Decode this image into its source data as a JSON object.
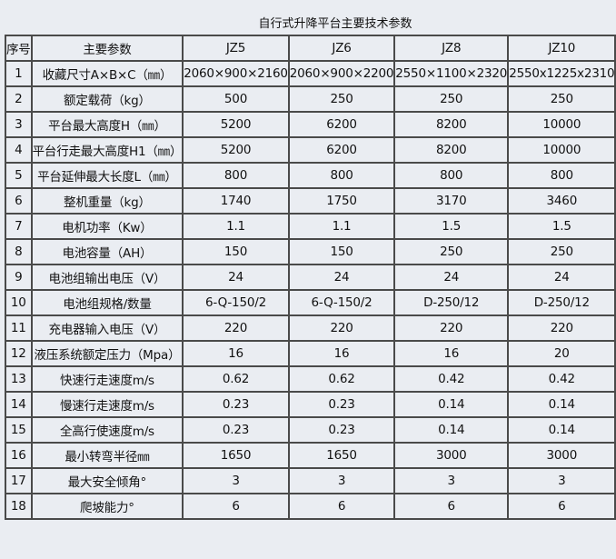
{
  "title": "自行式升降平台主要技术参数",
  "header": [
    "序号",
    "主要参数",
    "JZ5",
    "JZ6",
    "JZ8",
    "JZ10"
  ],
  "rows": [
    [
      "1",
      "收藏尺寸A×B×C（㎜）",
      "2060×900×2160",
      "2060×900×2200",
      "2550×1100×2320",
      "2550x1225x2310"
    ],
    [
      "2",
      "额定载荷（kg）",
      "500",
      "250",
      "250",
      "250"
    ],
    [
      "3",
      "平台最大高度H（㎜）",
      "5200",
      "6200",
      "8200",
      "10000"
    ],
    [
      "4",
      "平台行走最大高度H1（㎜）",
      "5200",
      "6200",
      "8200",
      "10000"
    ],
    [
      "5",
      "平台延伸最大长度L（㎜）",
      "800",
      "800",
      "800",
      "800"
    ],
    [
      "6",
      "整机重量（kg）",
      "1740",
      "1750",
      "3170",
      "3460"
    ],
    [
      "7",
      "电机功率（Kw）",
      "1.1",
      "1.1",
      "1.5",
      "1.5"
    ],
    [
      "8",
      "电池容量（AH）",
      "150",
      "150",
      "250",
      "250"
    ],
    [
      "9",
      "电池组输出电压（V）",
      "24",
      "24",
      "24",
      "24"
    ],
    [
      "10",
      "电池组规格/数量",
      "6-Q-150/2",
      "6-Q-150/2",
      "D-250/12",
      "D-250/12"
    ],
    [
      "11",
      "充电器输入电压（V）",
      "220",
      "220",
      "220",
      "220"
    ],
    [
      "12",
      "液压系统额定压力（Mpa）",
      "16",
      "16",
      "16",
      "20"
    ],
    [
      "13",
      "快速行走速度m/s",
      "0.62",
      "0.62",
      "0.42",
      "0.42"
    ],
    [
      "14",
      "慢速行走速度m/s",
      "0.23",
      "0.23",
      "0.14",
      "0.14"
    ],
    [
      "15",
      "全高行使速度m/s",
      "0.23",
      "0.23",
      "0.14",
      "0.14"
    ],
    [
      "16",
      "最小转弯半径㎜",
      "1650",
      "1650",
      "3000",
      "3000"
    ],
    [
      "17",
      "最大安全倾角°",
      "3",
      "3",
      "3",
      "3"
    ],
    [
      "18",
      "爬坡能力°",
      "6",
      "6",
      "6",
      "6"
    ]
  ]
}
